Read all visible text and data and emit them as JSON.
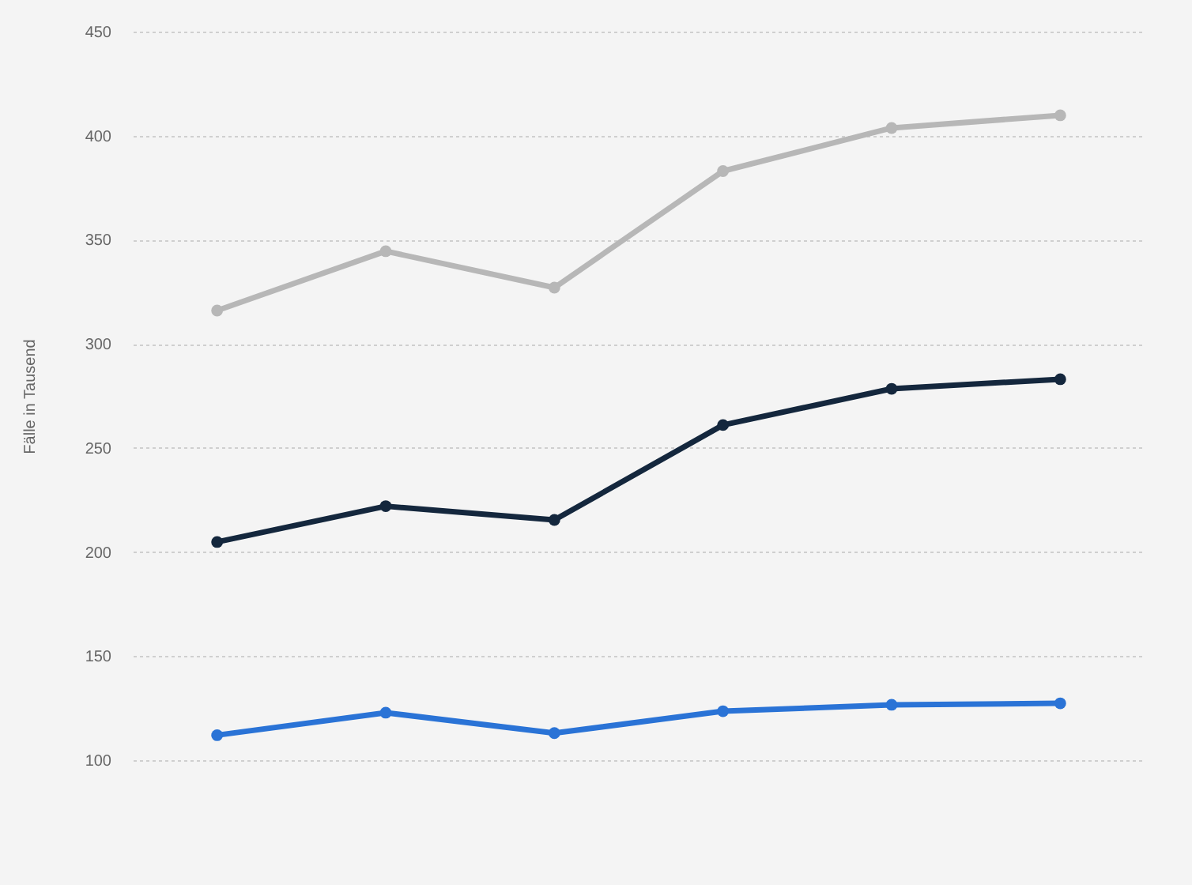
{
  "chart_data": {
    "type": "line",
    "ylabel": "Fälle in Tausend",
    "categories": [
      null,
      null,
      null,
      null,
      null,
      null
    ],
    "series": [
      {
        "color": "#b7b7b7",
        "values": [
          316,
          344.5,
          327,
          383,
          403.7,
          409.8
        ]
      },
      {
        "color": "#14273d",
        "values": [
          204.8,
          222,
          215.4,
          261,
          278.4,
          283
        ]
      },
      {
        "color": "#2a73d6",
        "values": [
          112,
          122.8,
          113,
          123.5,
          126.6,
          127.3
        ]
      }
    ],
    "ylim": [
      100,
      450
    ],
    "yticks": [
      100,
      150,
      200,
      250,
      300,
      350,
      400,
      450
    ],
    "grid": "y",
    "marker": "circle",
    "line_style": "solid",
    "tick_labels": "y"
  }
}
